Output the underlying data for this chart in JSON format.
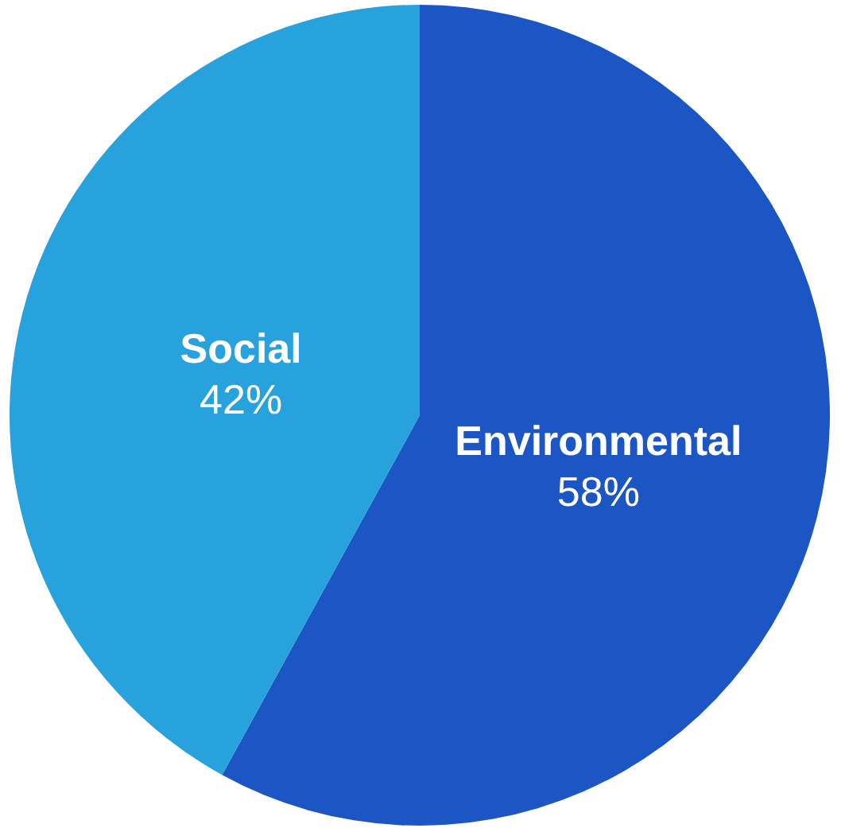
{
  "chart_data": {
    "type": "pie",
    "categories": [
      "Environmental",
      "Social"
    ],
    "values": [
      58,
      42
    ],
    "colors": [
      "#1c55c4",
      "#28a2dc"
    ],
    "value_labels": [
      "58%",
      "42%"
    ]
  }
}
